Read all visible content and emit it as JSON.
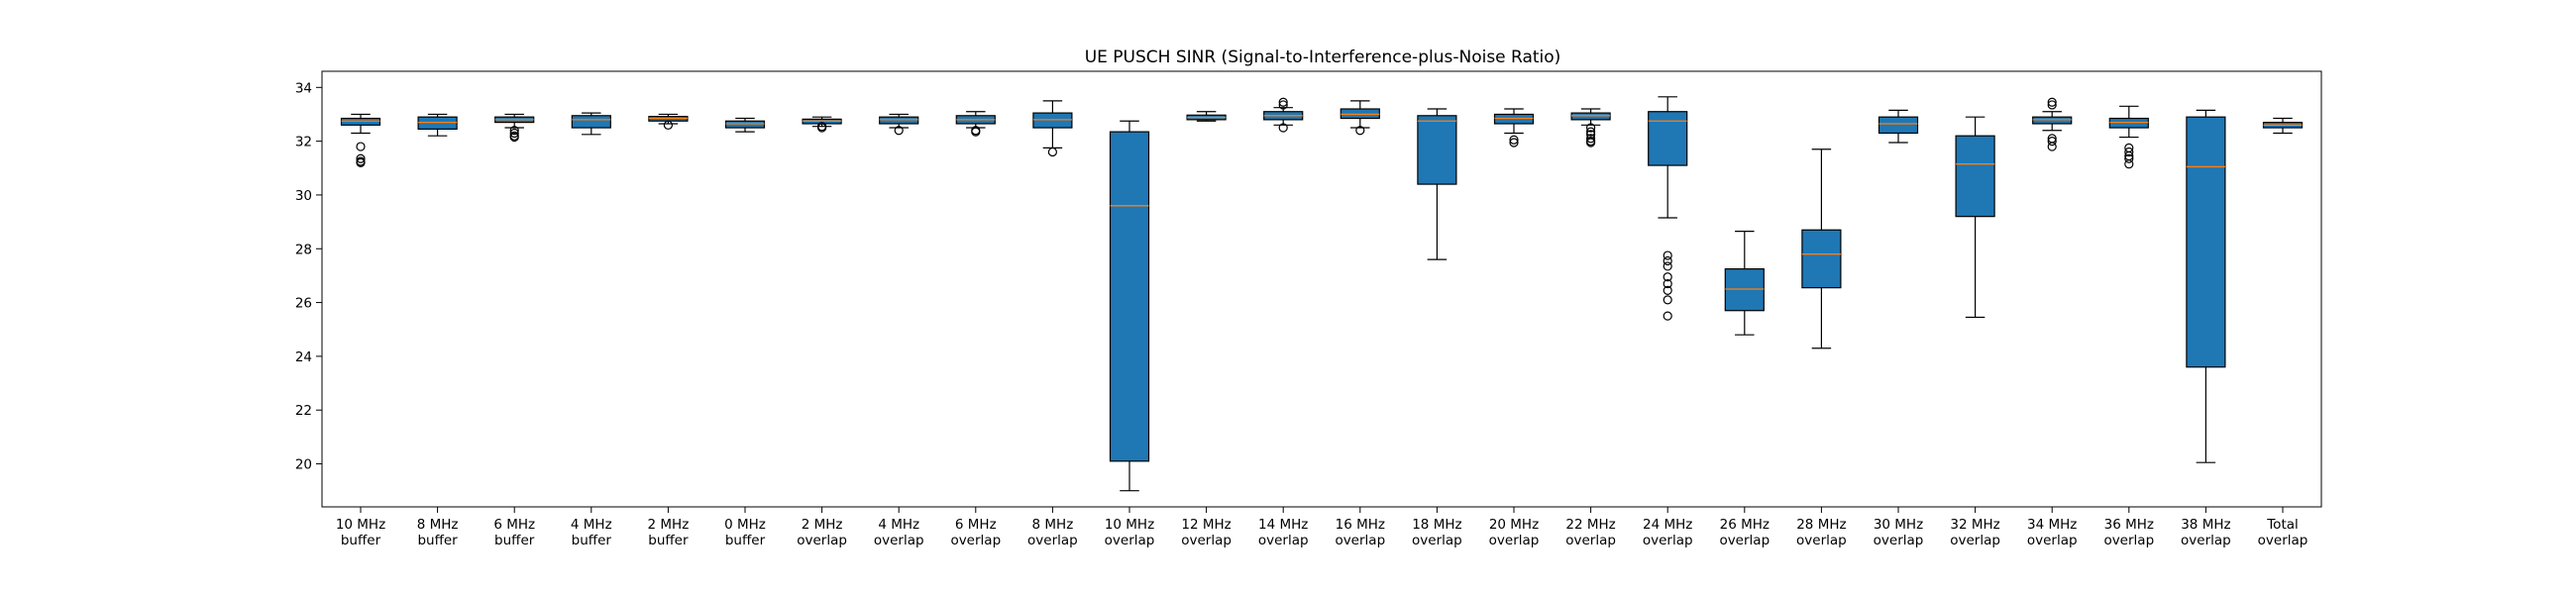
{
  "chart_data": {
    "type": "boxplot",
    "title": "UE PUSCH SINR (Signal-to-Interference-plus-Noise Ratio)",
    "xlabel": "",
    "ylabel": "",
    "ylim": [
      18.4,
      34.6
    ],
    "yticks": [
      20,
      22,
      24,
      26,
      28,
      30,
      32,
      34
    ],
    "grid": false,
    "colors": {
      "box": "#1f77b4",
      "median": "#ff7f0e",
      "line": "#000000"
    },
    "categories": [
      [
        "10 MHz",
        "buffer"
      ],
      [
        "8 MHz",
        "buffer"
      ],
      [
        "6 MHz",
        "buffer"
      ],
      [
        "4 MHz",
        "buffer"
      ],
      [
        "2 MHz",
        "buffer"
      ],
      [
        "0 MHz",
        "buffer"
      ],
      [
        "2 MHz",
        "overlap"
      ],
      [
        "4 MHz",
        "overlap"
      ],
      [
        "6 MHz",
        "overlap"
      ],
      [
        "8 MHz",
        "overlap"
      ],
      [
        "10 MHz",
        "overlap"
      ],
      [
        "12 MHz",
        "overlap"
      ],
      [
        "14 MHz",
        "overlap"
      ],
      [
        "16 MHz",
        "overlap"
      ],
      [
        "18 MHz",
        "overlap"
      ],
      [
        "20 MHz",
        "overlap"
      ],
      [
        "22 MHz",
        "overlap"
      ],
      [
        "24 MHz",
        "overlap"
      ],
      [
        "26 MHz",
        "overlap"
      ],
      [
        "28 MHz",
        "overlap"
      ],
      [
        "30 MHz",
        "overlap"
      ],
      [
        "32 MHz",
        "overlap"
      ],
      [
        "34 MHz",
        "overlap"
      ],
      [
        "36 MHz",
        "overlap"
      ],
      [
        "38 MHz",
        "overlap"
      ],
      [
        "Total",
        "overlap"
      ]
    ],
    "boxes": [
      {
        "whislo": 32.3,
        "q1": 32.6,
        "med": 32.75,
        "q3": 32.85,
        "whishi": 33.0,
        "fliers": [
          31.8,
          31.35,
          31.25,
          31.2
        ]
      },
      {
        "whislo": 32.2,
        "q1": 32.45,
        "med": 32.7,
        "q3": 32.9,
        "whishi": 33.0,
        "fliers": []
      },
      {
        "whislo": 32.5,
        "q1": 32.7,
        "med": 32.8,
        "q3": 32.9,
        "whishi": 33.0,
        "fliers": [
          32.4,
          32.3,
          32.2,
          32.15
        ]
      },
      {
        "whislo": 32.25,
        "q1": 32.5,
        "med": 32.8,
        "q3": 32.95,
        "whishi": 33.05,
        "fliers": []
      },
      {
        "whislo": 32.65,
        "q1": 32.75,
        "med": 32.85,
        "q3": 32.92,
        "whishi": 33.0,
        "fliers": [
          32.6
        ]
      },
      {
        "whislo": 32.35,
        "q1": 32.5,
        "med": 32.65,
        "q3": 32.75,
        "whishi": 32.85,
        "fliers": []
      },
      {
        "whislo": 32.55,
        "q1": 32.65,
        "med": 32.75,
        "q3": 32.82,
        "whishi": 32.9,
        "fliers": [
          32.5,
          32.55
        ]
      },
      {
        "whislo": 32.5,
        "q1": 32.65,
        "med": 32.8,
        "q3": 32.9,
        "whishi": 33.0,
        "fliers": [
          32.4
        ]
      },
      {
        "whislo": 32.5,
        "q1": 32.65,
        "med": 32.8,
        "q3": 32.95,
        "whishi": 33.1,
        "fliers": [
          32.4,
          32.35
        ]
      },
      {
        "whislo": 31.75,
        "q1": 32.5,
        "med": 32.8,
        "q3": 33.05,
        "whishi": 33.5,
        "fliers": [
          31.6
        ]
      },
      {
        "whislo": 19.0,
        "q1": 20.1,
        "med": 29.6,
        "q3": 32.35,
        "whishi": 32.75,
        "fliers": []
      },
      {
        "whislo": 32.75,
        "q1": 32.8,
        "med": 32.88,
        "q3": 32.97,
        "whishi": 33.1,
        "fliers": []
      },
      {
        "whislo": 32.6,
        "q1": 32.8,
        "med": 32.95,
        "q3": 33.1,
        "whishi": 33.25,
        "fliers": [
          32.5,
          33.35,
          33.45
        ]
      },
      {
        "whislo": 32.5,
        "q1": 32.85,
        "med": 33.0,
        "q3": 33.2,
        "whishi": 33.5,
        "fliers": [
          32.4
        ]
      },
      {
        "whislo": 27.6,
        "q1": 30.4,
        "med": 32.75,
        "q3": 32.95,
        "whishi": 33.2,
        "fliers": []
      },
      {
        "whislo": 32.3,
        "q1": 32.65,
        "med": 32.85,
        "q3": 33.0,
        "whishi": 33.2,
        "fliers": [
          32.05,
          31.95
        ]
      },
      {
        "whislo": 32.6,
        "q1": 32.8,
        "med": 32.95,
        "q3": 33.05,
        "whishi": 33.2,
        "fliers": [
          32.5,
          32.35,
          32.25,
          32.1,
          32.0,
          31.95
        ]
      },
      {
        "whislo": 29.15,
        "q1": 31.1,
        "med": 32.75,
        "q3": 33.1,
        "whishi": 33.65,
        "fliers": [
          27.75,
          27.55,
          27.35,
          26.95,
          26.7,
          26.45,
          26.1,
          25.5
        ]
      },
      {
        "whislo": 24.8,
        "q1": 25.7,
        "med": 26.5,
        "q3": 27.25,
        "whishi": 28.65,
        "fliers": []
      },
      {
        "whislo": 24.3,
        "q1": 26.55,
        "med": 27.8,
        "q3": 28.7,
        "whishi": 31.7,
        "fliers": []
      },
      {
        "whislo": 31.95,
        "q1": 32.3,
        "med": 32.65,
        "q3": 32.9,
        "whishi": 33.15,
        "fliers": []
      },
      {
        "whislo": 25.45,
        "q1": 29.2,
        "med": 31.15,
        "q3": 32.2,
        "whishi": 32.9,
        "fliers": []
      },
      {
        "whislo": 32.4,
        "q1": 32.65,
        "med": 32.8,
        "q3": 32.9,
        "whishi": 33.1,
        "fliers": [
          32.1,
          32.0,
          31.8,
          33.35,
          33.45
        ]
      },
      {
        "whislo": 32.15,
        "q1": 32.5,
        "med": 32.7,
        "q3": 32.85,
        "whishi": 33.3,
        "fliers": [
          31.75,
          31.6,
          31.45,
          31.35,
          31.15
        ]
      },
      {
        "whislo": 20.05,
        "q1": 23.6,
        "med": 31.05,
        "q3": 32.9,
        "whishi": 33.15,
        "fliers": []
      },
      {
        "whislo": 32.3,
        "q1": 32.5,
        "med": 32.6,
        "q3": 32.7,
        "whishi": 32.85,
        "fliers": []
      }
    ]
  }
}
